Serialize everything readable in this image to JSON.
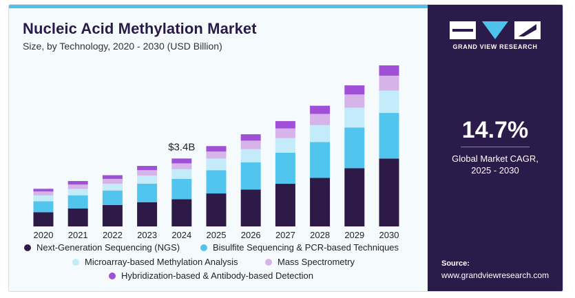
{
  "title": "Nucleic Acid Methylation Market",
  "subtitle": "Size, by Technology, 2020 - 2030 (USD Billion)",
  "brand": "GRAND VIEW RESEARCH",
  "cagr": {
    "value": "14.7%",
    "label_line1": "Global Market CAGR,",
    "label_line2": "2025 - 2030"
  },
  "source": {
    "label": "Source:",
    "url": "www.grandviewresearch.com"
  },
  "colors": {
    "ngs": "#2e1a46",
    "bisulfite": "#52c5ef",
    "microarray": "#c4ebfa",
    "mass_spec": "#d6b4ea",
    "hybridization": "#a04fd7",
    "panel": "#2b1b4b",
    "accent": "#4dc3ec"
  },
  "legend": [
    {
      "label": "Next-Generation Sequencing (NGS)",
      "color": "#2e1a46"
    },
    {
      "label": "Bisulfite Sequencing & PCR-based Techniques",
      "color": "#52c5ef"
    },
    {
      "label": "Microarray-based Methylation Analysis",
      "color": "#c4ebfa"
    },
    {
      "label": "Mass Spectrometry",
      "color": "#d6b4ea"
    },
    {
      "label": "Hybridization-based & Antibody-based Detection",
      "color": "#a04fd7"
    }
  ],
  "chart_data": {
    "type": "bar",
    "stacked": true,
    "title": "Nucleic Acid Methylation Market",
    "subtitle": "Size, by Technology, 2020 - 2030 (USD Billion)",
    "categories": [
      "2020",
      "2021",
      "2022",
      "2023",
      "2024",
      "2025",
      "2026",
      "2027",
      "2028",
      "2029",
      "2030"
    ],
    "series": [
      {
        "name": "Next-Generation Sequencing (NGS)",
        "values": [
          0.73,
          0.93,
          1.1,
          1.25,
          1.4,
          1.7,
          1.9,
          2.2,
          2.5,
          3.0,
          3.5
        ]
      },
      {
        "name": "Bisulfite Sequencing & PCR-based Techniques",
        "values": [
          0.57,
          0.67,
          0.75,
          0.95,
          1.05,
          1.2,
          1.4,
          1.6,
          1.85,
          2.1,
          2.35
        ]
      },
      {
        "name": "Microarray-based Methylation Analysis",
        "values": [
          0.3,
          0.33,
          0.35,
          0.42,
          0.5,
          0.6,
          0.68,
          0.75,
          0.87,
          1.02,
          1.15
        ]
      },
      {
        "name": "Mass Spectrometry",
        "values": [
          0.2,
          0.23,
          0.25,
          0.28,
          0.3,
          0.36,
          0.44,
          0.5,
          0.58,
          0.68,
          0.77
        ]
      },
      {
        "name": "Hybridization-based & Antibody-based Detection",
        "values": [
          0.14,
          0.18,
          0.19,
          0.22,
          0.25,
          0.28,
          0.33,
          0.38,
          0.42,
          0.47,
          0.53
        ]
      }
    ],
    "annotation": {
      "category": "2024",
      "text": "$3.4B"
    },
    "ylim": [
      0,
      9
    ],
    "grid": false,
    "legend_position": "bottom"
  }
}
